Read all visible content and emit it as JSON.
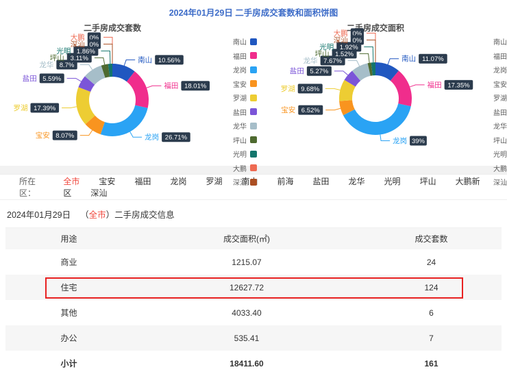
{
  "page_title": "2024年01月29日 二手房成交套数和面积饼图",
  "chart_data": [
    {
      "type": "pie",
      "donut": true,
      "title": "二手房成交套数",
      "labels": [
        "南山",
        "福田",
        "龙岗",
        "宝安",
        "罗湖",
        "盐田",
        "龙华",
        "坪山",
        "光明",
        "大鹏",
        "深汕"
      ],
      "values": [
        10.56,
        18.01,
        26.71,
        8.07,
        17.39,
        5.59,
        8.7,
        3.11,
        1.86,
        0,
        0
      ],
      "value_labels": [
        "10.56%",
        "18.01%",
        "26.71%",
        "8.07%",
        "17.39%",
        "5.59%",
        "8.7%",
        "3.11%",
        "1.86%",
        "0%",
        "0%"
      ],
      "unit": "percent",
      "legend_position": "right"
    },
    {
      "type": "pie",
      "donut": true,
      "title": "二手房成交面积",
      "labels": [
        "南山",
        "福田",
        "龙岗",
        "宝安",
        "罗湖",
        "盐田",
        "龙华",
        "坪山",
        "光明",
        "大鹏",
        "深汕"
      ],
      "values": [
        11.07,
        17.35,
        39,
        6.52,
        9.68,
        5.27,
        7.67,
        1.52,
        1.92,
        0,
        0
      ],
      "value_labels": [
        "11.07%",
        "17.35%",
        "39%",
        "6.52%",
        "9.68%",
        "5.27%",
        "7.67%",
        "1.52%",
        "1.92%",
        "0%",
        "0%"
      ],
      "unit": "percent",
      "legend_position": "right"
    }
  ],
  "palette": {
    "南山": "#2057c0",
    "福田": "#f02d8c",
    "龙岗": "#2aa3f4",
    "宝安": "#f9941f",
    "罗湖": "#edcd33",
    "盐田": "#7b55d8",
    "龙华": "#a6bec9",
    "坪山": "#4e6a30",
    "光明": "#13756c",
    "大鹏": "#ee6a52",
    "深汕": "#ab4e22"
  },
  "label_box_color": "#2b3b4d",
  "title_color": "#3d6cc8",
  "filter": {
    "label": "所在区：",
    "active": "全市",
    "active_color": "#f0483e",
    "options": [
      "全市",
      "宝安",
      "福田",
      "龙岗",
      "罗湖",
      "南山",
      "前海",
      "盐田",
      "龙华",
      "光明",
      "坪山",
      "大鹏新区",
      "深汕"
    ]
  },
  "section": {
    "date": "2024年01月29日",
    "open": "（",
    "region": "全市",
    "close": "）",
    "rest": "二手房成交信息"
  },
  "table": {
    "headers": [
      "用途",
      "成交面积(㎡)",
      "成交套数"
    ],
    "rows": [
      {
        "use": "商业",
        "area": "1215.07",
        "count": "24",
        "highlighted": false,
        "bold": false
      },
      {
        "use": "住宅",
        "area": "12627.72",
        "count": "124",
        "highlighted": true,
        "bold": false
      },
      {
        "use": "其他",
        "area": "4033.40",
        "count": "6",
        "highlighted": false,
        "bold": false
      },
      {
        "use": "办公",
        "area": "535.41",
        "count": "7",
        "highlighted": false,
        "bold": false
      },
      {
        "use": "小计",
        "area": "18411.60",
        "count": "161",
        "highlighted": false,
        "bold": true
      }
    ]
  }
}
